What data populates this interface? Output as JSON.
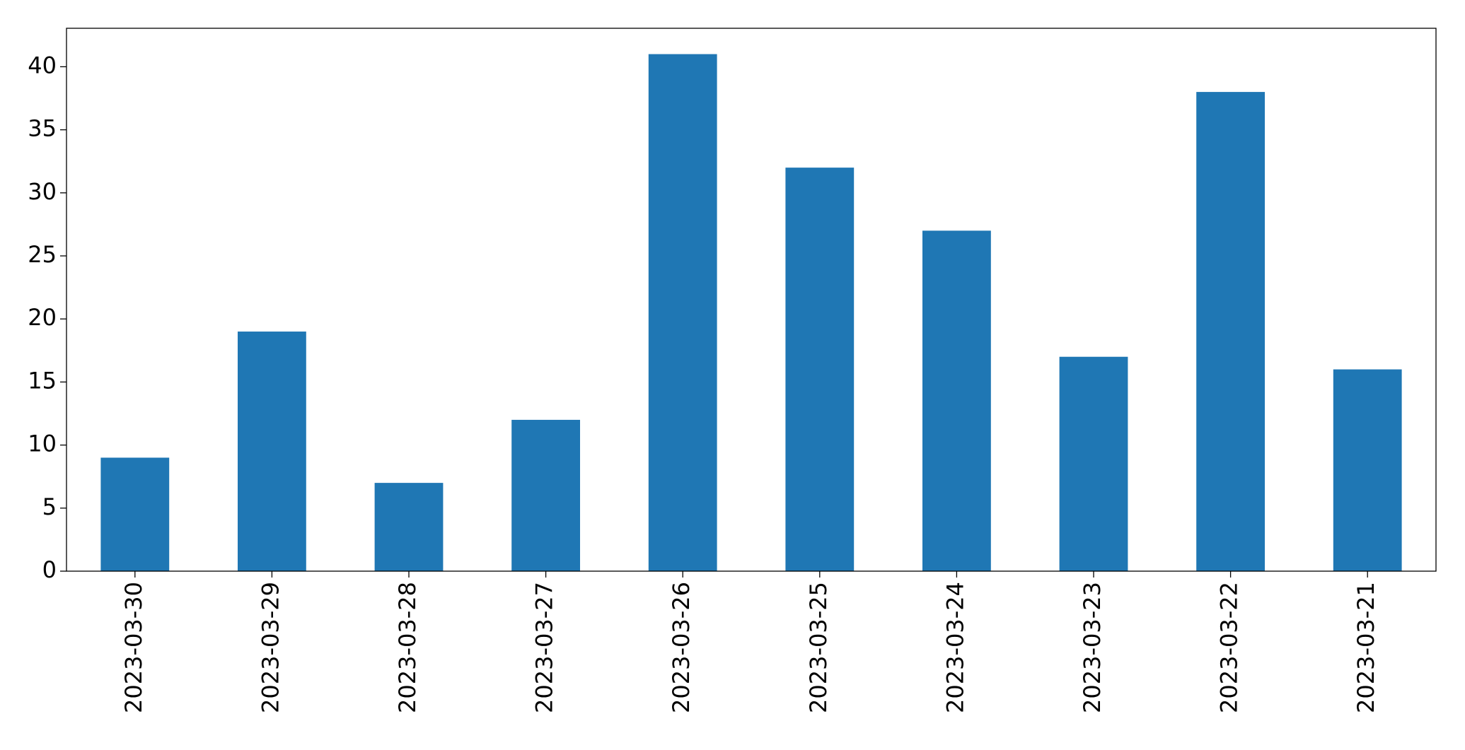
{
  "chart_data": {
    "type": "bar",
    "categories": [
      "2023-03-30",
      "2023-03-29",
      "2023-03-28",
      "2023-03-27",
      "2023-03-26",
      "2023-03-25",
      "2023-03-24",
      "2023-03-23",
      "2023-03-22",
      "2023-03-21"
    ],
    "values": [
      9,
      19,
      7,
      12,
      41,
      32,
      27,
      17,
      38,
      16
    ],
    "color": "#1f77b4",
    "ylim": [
      0,
      43.05
    ],
    "yticks": [
      0,
      5,
      10,
      15,
      20,
      25,
      30,
      35,
      40
    ],
    "grid": false
  }
}
